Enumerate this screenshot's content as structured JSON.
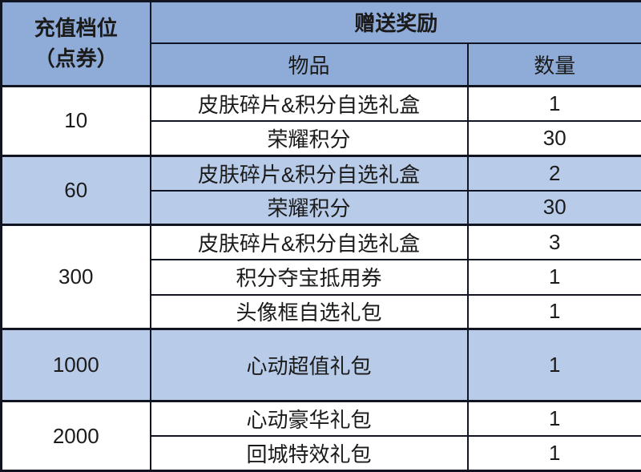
{
  "table": {
    "header": {
      "tier_label_line1": "充值档位",
      "tier_label_line2": "（点券）",
      "rewards_label": "赠送奖励",
      "item_label": "物品",
      "qty_label": "数量"
    },
    "tiers": [
      {
        "tier": "10",
        "shade": "white",
        "tall": false,
        "rewards": [
          {
            "item": "皮肤碎片&积分自选礼盒",
            "qty": "1"
          },
          {
            "item": "荣耀积分",
            "qty": "30"
          }
        ]
      },
      {
        "tier": "60",
        "shade": "blue",
        "tall": false,
        "rewards": [
          {
            "item": "皮肤碎片&积分自选礼盒",
            "qty": "2"
          },
          {
            "item": "荣耀积分",
            "qty": "30"
          }
        ]
      },
      {
        "tier": "300",
        "shade": "white",
        "tall": false,
        "rewards": [
          {
            "item": "皮肤碎片&积分自选礼盒",
            "qty": "3"
          },
          {
            "item": "积分夺宝抵用券",
            "qty": "1"
          },
          {
            "item": "头像框自选礼包",
            "qty": "1"
          }
        ]
      },
      {
        "tier": "1000",
        "shade": "blue",
        "tall": true,
        "rewards": [
          {
            "item": "心动超值礼包",
            "qty": "1"
          }
        ]
      },
      {
        "tier": "2000",
        "shade": "white",
        "tall": false,
        "rewards": [
          {
            "item": "心动豪华礼包",
            "qty": "1"
          },
          {
            "item": "回城特效礼包",
            "qty": "1"
          }
        ]
      }
    ],
    "colors": {
      "header_blue": "#8fabd7",
      "row_blue": "#b8cbe8",
      "row_white": "#ffffff",
      "border": "#101521",
      "text": "#1b1b1b"
    }
  },
  "chart_data": {
    "type": "table",
    "title": "",
    "columns": [
      "充值档位（点券）",
      "物品",
      "数量"
    ],
    "rows": [
      [
        "10",
        "皮肤碎片&积分自选礼盒",
        "1"
      ],
      [
        "10",
        "荣耀积分",
        "30"
      ],
      [
        "60",
        "皮肤碎片&积分自选礼盒",
        "2"
      ],
      [
        "60",
        "荣耀积分",
        "30"
      ],
      [
        "300",
        "皮肤碎片&积分自选礼盒",
        "3"
      ],
      [
        "300",
        "积分夺宝抵用券",
        "1"
      ],
      [
        "300",
        "头像框自选礼包",
        "1"
      ],
      [
        "1000",
        "心动超值礼包",
        "1"
      ],
      [
        "2000",
        "心动豪华礼包",
        "1"
      ],
      [
        "2000",
        "回城特效礼包",
        "1"
      ]
    ],
    "layout_hints": {
      "header_fill": "#8fabd7",
      "group_fills_alternate": [
        "#ffffff",
        "#b8cbe8"
      ],
      "grid": true,
      "tier_cells_merged": true
    }
  }
}
